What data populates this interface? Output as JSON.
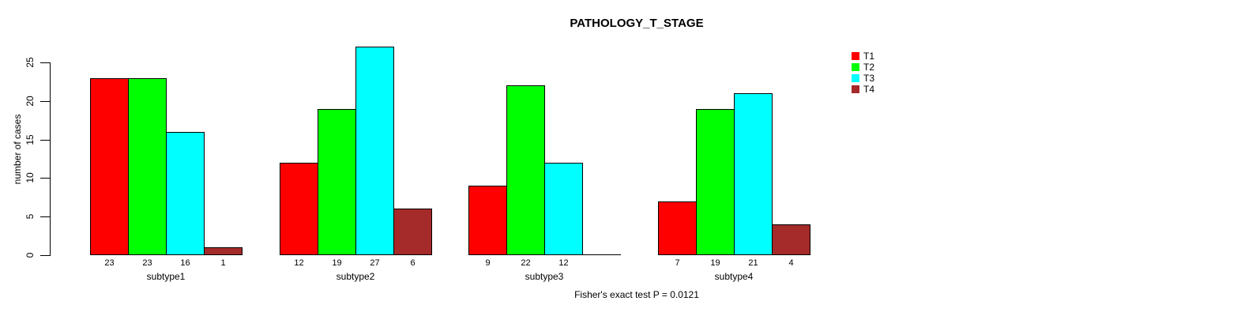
{
  "chart_data": {
    "type": "bar",
    "title": "PATHOLOGY_T_STAGE",
    "ylabel": "number of cases",
    "xlabel": "",
    "footer": "Fisher's exact test P = 0.0121",
    "categories": [
      "subtype1",
      "subtype2",
      "subtype3",
      "subtype4"
    ],
    "series": [
      {
        "name": "T1",
        "color": "#FF0000",
        "values": [
          23,
          12,
          9,
          7
        ]
      },
      {
        "name": "T2",
        "color": "#00FF00",
        "values": [
          23,
          19,
          22,
          19
        ]
      },
      {
        "name": "T3",
        "color": "#00FFFF",
        "values": [
          16,
          27,
          12,
          21
        ]
      },
      {
        "name": "T4",
        "color": "#A52A2A",
        "values": [
          1,
          6,
          0,
          4
        ]
      }
    ],
    "yticks": [
      0,
      5,
      10,
      15,
      20,
      25
    ],
    "ylim": [
      0,
      25
    ],
    "bar_value_labels": true,
    "legend_position": "top-right",
    "legend_entries": [
      "T1",
      "T2",
      "T3",
      "T4"
    ],
    "grid": false,
    "background_color": "#FFFFFF",
    "axis_color": "#000000"
  }
}
